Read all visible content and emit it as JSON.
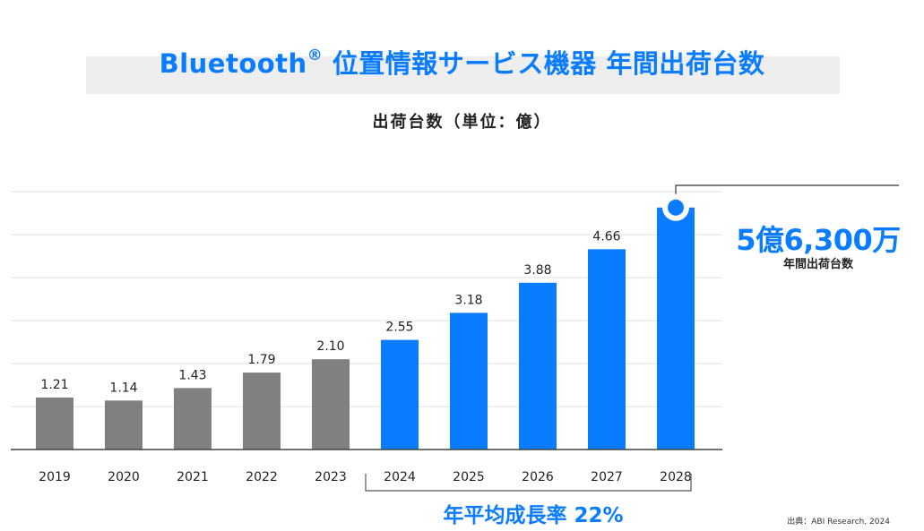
{
  "header": {
    "title_main": "Bluetooth",
    "title_reg": "®",
    "title_rest": " 位置情報サービス機器 年間出荷台数",
    "subtitle": "出荷台数（単位：億）"
  },
  "chart_data": {
    "type": "bar",
    "title": "Bluetooth® 位置情報サービス機器 年間出荷台数",
    "ylabel": "出荷台数（単位：億）",
    "ylim": [
      0,
      6
    ],
    "grid": true,
    "categories": [
      "2019",
      "2020",
      "2021",
      "2022",
      "2023",
      "2024",
      "2025",
      "2026",
      "2027",
      "2028"
    ],
    "values": [
      1.21,
      1.14,
      1.43,
      1.79,
      2.1,
      2.55,
      3.18,
      3.88,
      4.66,
      5.63
    ],
    "value_labels": [
      "1.21",
      "1.14",
      "1.43",
      "1.79",
      "2.10",
      "2.55",
      "3.18",
      "3.88",
      "4.66",
      ""
    ],
    "colors": {
      "historical": "#808080",
      "forecast": "#0a7cff",
      "grid": "#e2e2e2",
      "axis": "#444444"
    },
    "forecast_start_index": 5
  },
  "callout": {
    "big": "5億6,300万",
    "small": "年間出荷台数"
  },
  "cagr": {
    "label": "年平均成長率 22%"
  },
  "source": "出典：ABI Research, 2024"
}
